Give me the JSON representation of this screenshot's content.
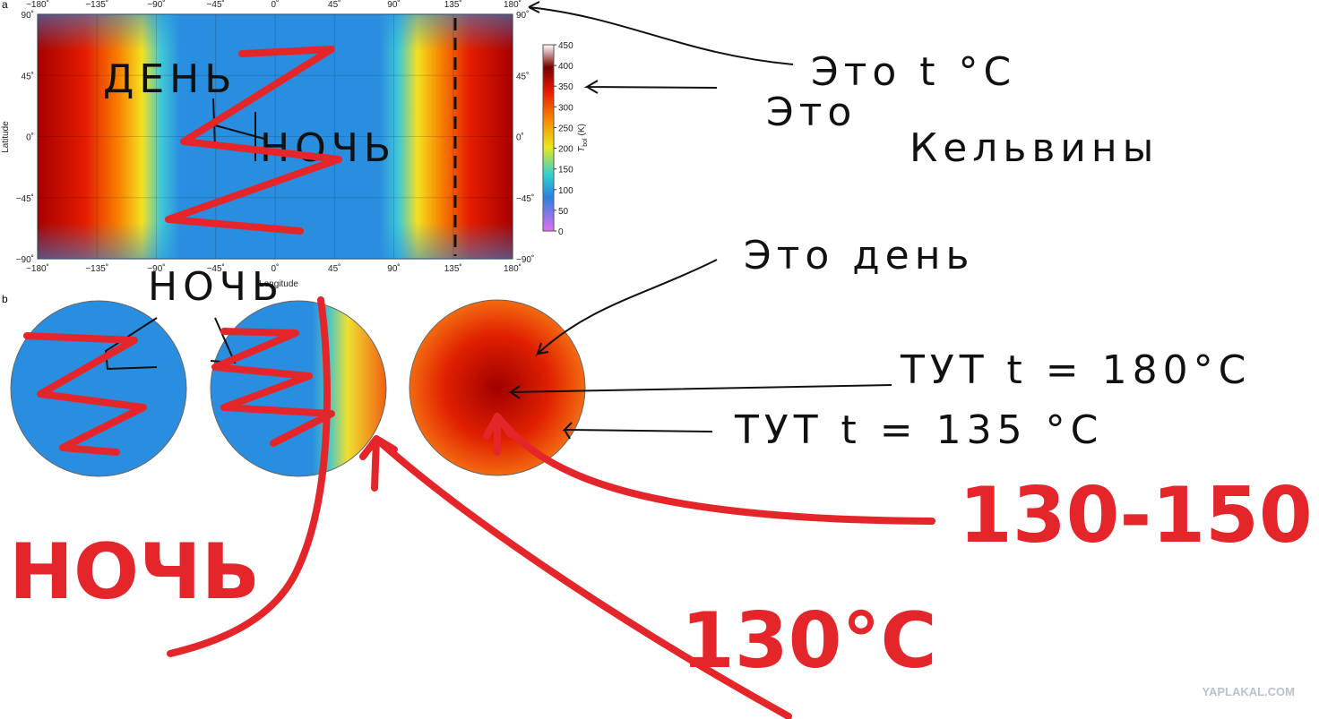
{
  "panel_a": {
    "label": "a",
    "x_ticks": [
      "−180˚",
      "−135˚",
      "−90˚",
      "−45˚",
      "0˚",
      "45˚",
      "90˚",
      "135˚",
      "180˚"
    ],
    "y_ticks": [
      "90˚",
      "45˚",
      "0˚",
      "−45˚",
      "−90˚"
    ],
    "x_axis_label": "Longitude",
    "y_axis_label": "Latitude",
    "colorbar": {
      "ticks": [
        450,
        400,
        350,
        300,
        250,
        200,
        150,
        100,
        50,
        0
      ],
      "symbol": "T",
      "subscript": "bol",
      "unit": "(K)"
    }
  },
  "panel_b": {
    "label": "b"
  },
  "annotations": {
    "map_day": "ДЕНЬ",
    "map_night": "НОЧЬ",
    "globe_night": "НОЧЬ",
    "celsius": "Это t °C",
    "kelvin_line1": "Это",
    "kelvin_line2": "Кельвины",
    "day": "Это день",
    "here_180": "ТУТ t = 180°C",
    "here_135": "ТУТ t = 135 °C",
    "night_red": "НОЧЬ",
    "range_red": "130-150°C",
    "temp_red": "130°C"
  },
  "watermark": "YAPLAKAL.COM"
}
